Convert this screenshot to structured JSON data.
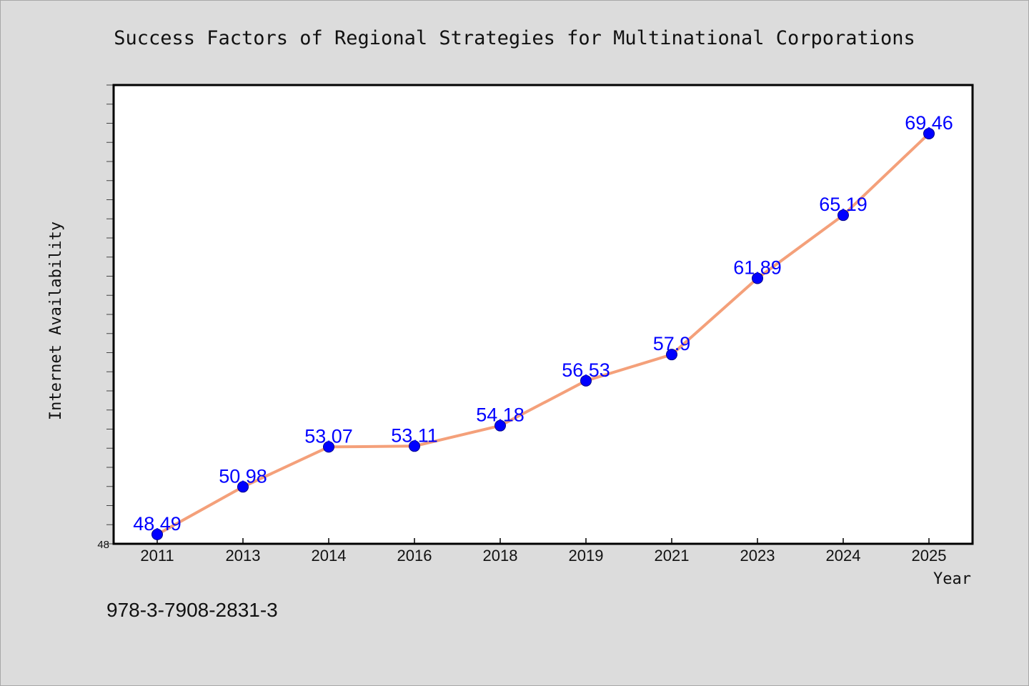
{
  "chart_data": {
    "type": "line",
    "title": "Success Factors of Regional Strategies for Multinational Corporations",
    "xlabel": "Year",
    "ylabel": "Internet Availability",
    "categories": [
      "2011",
      "2013",
      "2014",
      "2016",
      "2018",
      "2019",
      "2021",
      "2023",
      "2024",
      "2025"
    ],
    "series": [
      {
        "values": [
          48.49,
          50.98,
          53.07,
          53.11,
          54.18,
          56.53,
          57.9,
          61.89,
          65.19,
          69.46
        ],
        "labels": [
          "48.49",
          "50.98",
          "53.07",
          "53.11",
          "54.18",
          "56.53",
          "57.9",
          "61.89",
          "65.19",
          "69.46"
        ]
      }
    ],
    "ylim": [
      48,
      72
    ],
    "y_tick_labels": [
      "48"
    ],
    "grid": false,
    "legend": "none",
    "colors": {
      "line": "#f4a07a",
      "marker": "#0000ff",
      "data_label": "#0000ff",
      "background": "#dcdcdc",
      "plot_background": "#ffffff"
    }
  },
  "footer": {
    "isbn": "978-3-7908-2831-3"
  }
}
